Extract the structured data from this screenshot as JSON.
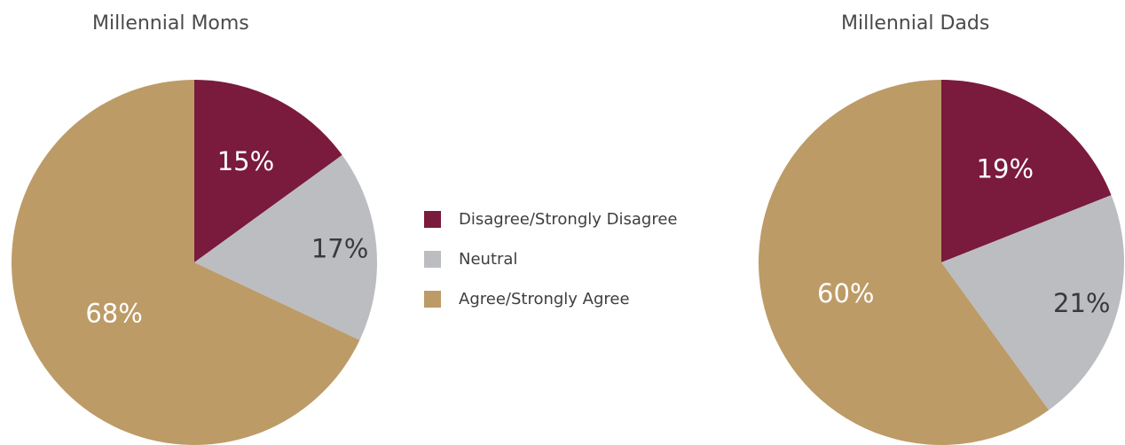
{
  "chart_data": [
    {
      "type": "pie",
      "title": "Millennial Moms",
      "categories": [
        "Disagree/Strongly Disagree",
        "Neutral",
        "Agree/Strongly Agree"
      ],
      "values": [
        15,
        17,
        68
      ],
      "labels": [
        "15%",
        "17%",
        "68%"
      ]
    },
    {
      "type": "pie",
      "title": "Millennial Dads",
      "categories": [
        "Disagree/Strongly Disagree",
        "Neutral",
        "Agree/Strongly Agree"
      ],
      "values": [
        19,
        21,
        60
      ],
      "labels": [
        "19%",
        "21%",
        "60%"
      ]
    }
  ],
  "legend": {
    "placement": "center",
    "items": [
      {
        "label": "Disagree/Strongly Disagree",
        "color": "#7a1a3c"
      },
      {
        "label": "Neutral",
        "color": "#bcbdc1"
      },
      {
        "label": "Agree/Strongly Agree",
        "color": "#bc9b67"
      }
    ]
  },
  "colors": {
    "disagree": "#7a1a3c",
    "neutral": "#bcbdc1",
    "agree": "#bc9b67",
    "label_text": "#ffffff",
    "neutral_label_text": "#3a3a3a"
  }
}
